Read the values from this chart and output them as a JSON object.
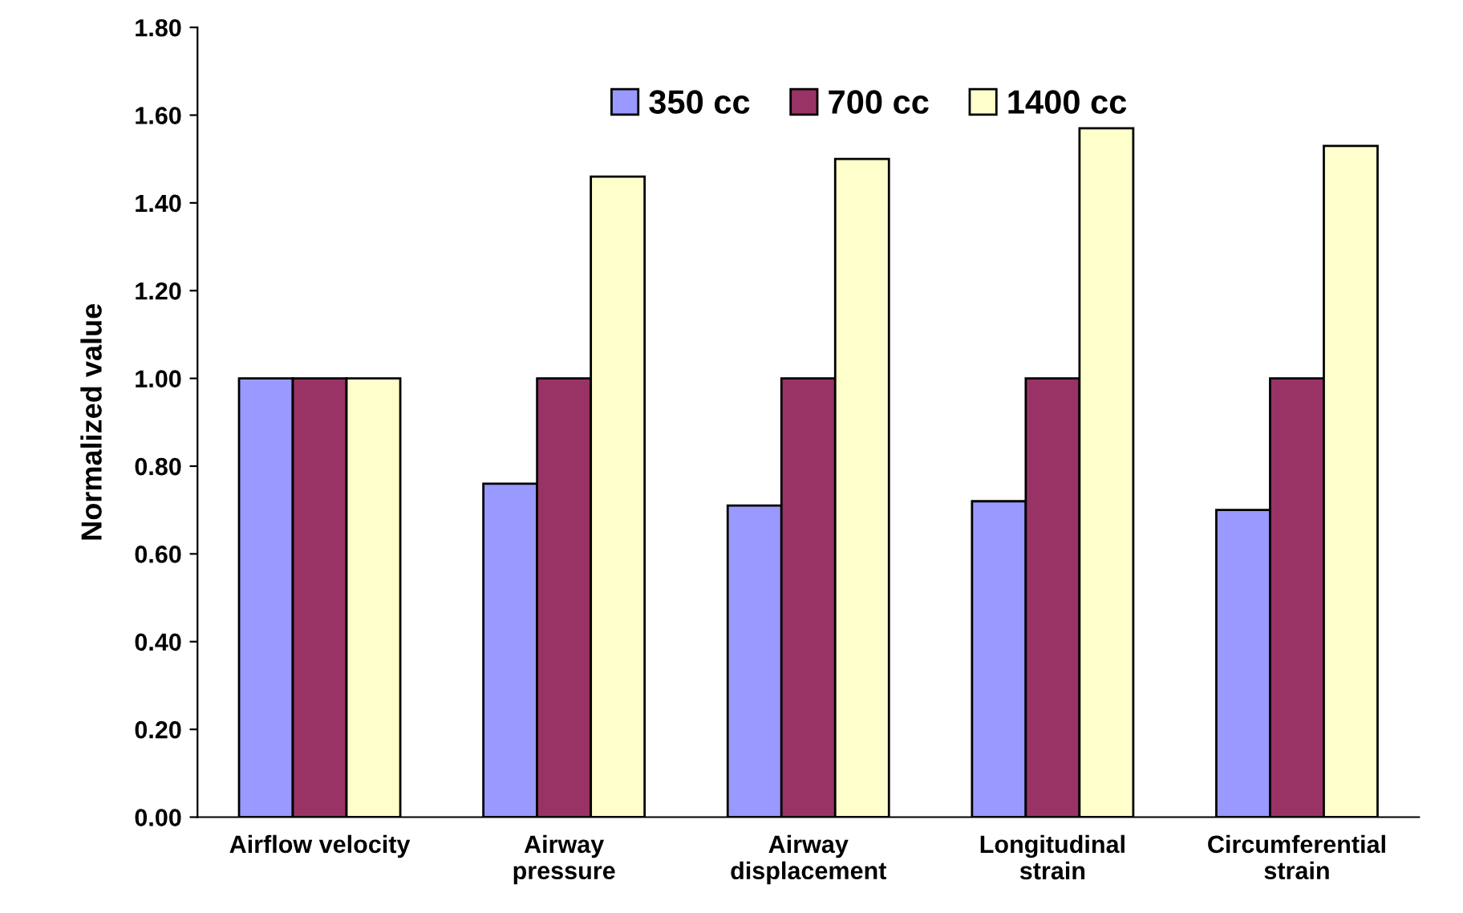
{
  "chart_data": {
    "type": "bar",
    "ylabel": "Normalized value",
    "categories": [
      "Airflow velocity",
      "Airway\npressure",
      "Airway\ndisplacement",
      "Longitudinal\nstrain",
      "Circumferential\nstrain"
    ],
    "series": [
      {
        "name": "350 cc",
        "color": "#9999ff",
        "values": [
          1.0,
          0.76,
          0.71,
          0.72,
          0.7
        ]
      },
      {
        "name": "700 cc",
        "color": "#993366",
        "values": [
          1.0,
          1.0,
          1.0,
          1.0,
          1.0
        ]
      },
      {
        "name": "1400 cc",
        "color": "#ffffcc",
        "values": [
          1.0,
          1.46,
          1.5,
          1.57,
          1.53
        ]
      }
    ],
    "ylim": [
      0,
      1.8
    ],
    "yticks": [
      {
        "value": 0,
        "label": "0.00"
      },
      {
        "value": 0.2,
        "label": "0.20"
      },
      {
        "value": 0.4,
        "label": "0.40"
      },
      {
        "value": 0.6,
        "label": "0.60"
      },
      {
        "value": 0.8,
        "label": "0.80"
      },
      {
        "value": 1.0,
        "label": "1.00"
      },
      {
        "value": 1.2,
        "label": "1.20"
      },
      {
        "value": 1.4,
        "label": "1.40"
      },
      {
        "value": 1.6,
        "label": "1.60"
      },
      {
        "value": 1.8,
        "label": "1.80"
      }
    ],
    "grid": false,
    "legend": "top"
  }
}
